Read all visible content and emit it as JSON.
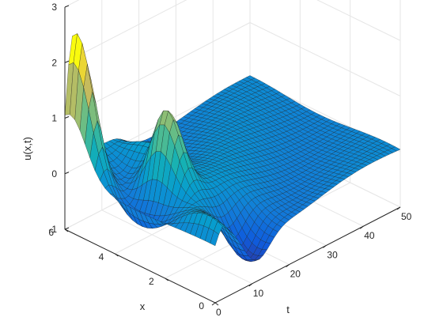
{
  "chart_data": {
    "type": "surface",
    "colormap": "parula",
    "grid": true,
    "xlabel": "t",
    "ylabel": "x",
    "zlabel": "u(x,t)",
    "t_ticks": [
      "0",
      "10",
      "20",
      "30",
      "40",
      "50"
    ],
    "x_ticks": [
      "0",
      "2",
      "4",
      "6"
    ],
    "z_ticks": [
      "-1",
      "0",
      "1",
      "2",
      "3"
    ],
    "t_range": [
      0,
      50
    ],
    "x_range": [
      0,
      6
    ],
    "z_range": [
      -1,
      3
    ],
    "mesh_t": 51,
    "mesh_x": 31,
    "peaks": [
      {
        "t": 2,
        "x": 5.8,
        "u": 2.1
      },
      {
        "t": 9,
        "x": 3.3,
        "u": 1.6
      }
    ],
    "trough": {
      "t": 11,
      "x": 0.6,
      "u": -0.8
    }
  }
}
